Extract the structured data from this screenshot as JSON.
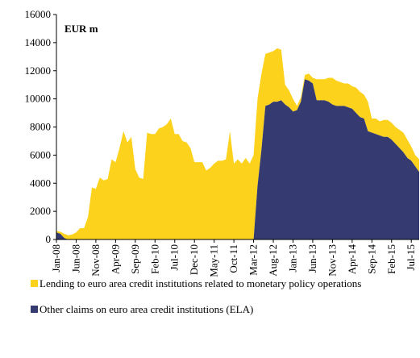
{
  "chart_data": {
    "type": "stacked-area",
    "unit_label": "EUR m",
    "categories": [
      "Jan-08",
      null,
      null,
      null,
      null,
      "Jun-08",
      null,
      null,
      null,
      null,
      "Nov-08",
      null,
      null,
      null,
      null,
      "Apr-09",
      null,
      null,
      null,
      null,
      "Sep-09",
      null,
      null,
      null,
      null,
      "Feb-10",
      null,
      null,
      null,
      null,
      "Jul-10",
      null,
      null,
      null,
      null,
      "Dec-10",
      null,
      null,
      null,
      null,
      "May-11",
      null,
      null,
      null,
      null,
      "Oct-11",
      null,
      null,
      null,
      null,
      "Mar-12",
      null,
      null,
      null,
      null,
      "Aug-12",
      null,
      null,
      null,
      null,
      "Jan-13",
      null,
      null,
      null,
      null,
      "Jun-13",
      null,
      null,
      null,
      null,
      "Nov-13",
      null,
      null,
      null,
      null,
      "Apr-14",
      null,
      null,
      null,
      null,
      "Sep-14",
      null,
      null,
      null,
      null,
      "Feb-15",
      null,
      null,
      null,
      null,
      "Jul-15",
      null,
      null
    ],
    "series": [
      {
        "name": "Other claims on euro area credit institutions (ELA)",
        "color": "#353a70",
        "values": [
          500,
          400,
          100,
          0,
          0,
          0,
          0,
          0,
          0,
          0,
          0,
          0,
          0,
          0,
          0,
          0,
          0,
          0,
          0,
          0,
          0,
          0,
          0,
          0,
          0,
          0,
          0,
          0,
          0,
          0,
          0,
          0,
          0,
          0,
          0,
          0,
          0,
          0,
          0,
          0,
          0,
          0,
          0,
          0,
          0,
          0,
          0,
          0,
          0,
          0,
          0,
          3800,
          6400,
          9500,
          9600,
          9800,
          9800,
          9900,
          9600,
          9400,
          9100,
          9200,
          9800,
          11400,
          11300,
          11100,
          9900,
          9900,
          9900,
          9800,
          9600,
          9500,
          9500,
          9500,
          9400,
          9300,
          9000,
          8700,
          8600,
          7700,
          7600,
          7500,
          7400,
          7300,
          7300,
          7100,
          6800,
          6500,
          6200,
          5800,
          5600,
          5200,
          4800
        ]
      },
      {
        "name": "Lending to euro area credit institutions related to monetary policy operations",
        "color": "#fcd21c",
        "values": [
          100,
          150,
          300,
          300,
          350,
          500,
          800,
          800,
          1600,
          3700,
          3600,
          4400,
          4200,
          4300,
          5700,
          5500,
          6500,
          7700,
          6900,
          7300,
          5000,
          4400,
          4300,
          7600,
          7500,
          7500,
          7900,
          8000,
          8200,
          8600,
          7500,
          7500,
          7000,
          6900,
          6500,
          5500,
          5500,
          5500,
          4900,
          5100,
          5400,
          5600,
          5600,
          5700,
          7700,
          5400,
          5700,
          5400,
          5800,
          5400,
          6000,
          6200,
          5400,
          3700,
          3700,
          3600,
          3800,
          3600,
          1400,
          1200,
          900,
          300,
          300,
          300,
          500,
          400,
          1500,
          1500,
          1500,
          1700,
          1900,
          1800,
          1700,
          1600,
          1700,
          1600,
          1800,
          1800,
          1700,
          2100,
          1000,
          1100,
          1000,
          1200,
          1200,
          1200,
          1200,
          1300,
          1400,
          1300,
          1000,
          800,
          900
        ]
      }
    ],
    "ylim": [
      0,
      16000
    ],
    "yticks": [
      0,
      2000,
      4000,
      6000,
      8000,
      10000,
      12000,
      14000,
      16000
    ]
  }
}
